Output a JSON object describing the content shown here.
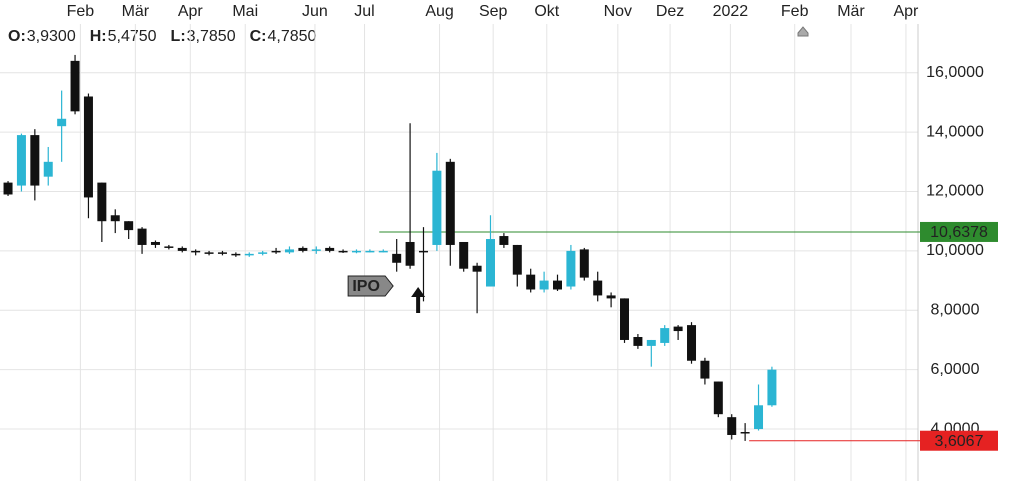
{
  "chart_data": {
    "type": "candlestick",
    "header": [
      {
        "label": "O:",
        "value": "3,9300"
      },
      {
        "label": "H:",
        "value": "5,4750"
      },
      {
        "label": "L:",
        "value": "3,7850"
      },
      {
        "label": "C:",
        "value": "4,7850"
      }
    ],
    "open": [
      12.3,
      12.2,
      13.9,
      12.5,
      14.2,
      16.4,
      15.2,
      12.3,
      11.2,
      11.0,
      10.75,
      10.3,
      10.15,
      10.1,
      10.0,
      9.95,
      9.95,
      9.9,
      9.85,
      9.9,
      10.0,
      9.95,
      10.1,
      10.0,
      10.1,
      10.0,
      9.97,
      9.98,
      9.98,
      9.9,
      10.3,
      10.0,
      10.2,
      13.0,
      10.3,
      9.5,
      8.8,
      10.5,
      10.2,
      9.2,
      8.7,
      9.0,
      8.8,
      10.05,
      9.0,
      8.5,
      8.4,
      7.1,
      6.8,
      6.9,
      7.45,
      7.5,
      6.3,
      5.6,
      4.4,
      3.9,
      4.0,
      4.8
    ],
    "high": [
      12.35,
      13.95,
      14.1,
      13.5,
      15.4,
      16.6,
      15.3,
      12.3,
      11.4,
      11.0,
      10.8,
      10.35,
      10.2,
      10.15,
      10.05,
      10.0,
      10.0,
      9.95,
      9.95,
      10.0,
      10.1,
      10.15,
      10.15,
      10.15,
      10.15,
      10.05,
      10.05,
      10.05,
      10.05,
      10.4,
      14.3,
      10.8,
      13.3,
      13.1,
      10.3,
      9.6,
      11.2,
      10.6,
      10.2,
      9.4,
      9.3,
      9.2,
      10.2,
      10.1,
      9.3,
      8.6,
      8.4,
      7.2,
      7.0,
      7.5,
      7.5,
      7.6,
      6.4,
      5.6,
      4.5,
      4.2,
      5.5,
      6.1
    ],
    "low": [
      11.85,
      12.0,
      11.7,
      12.2,
      13.0,
      14.6,
      11.1,
      10.3,
      10.6,
      10.4,
      9.9,
      10.1,
      10.05,
      9.95,
      9.85,
      9.85,
      9.85,
      9.8,
      9.8,
      9.85,
      9.9,
      9.9,
      9.95,
      9.9,
      9.95,
      9.93,
      9.92,
      9.95,
      9.95,
      9.3,
      9.4,
      8.3,
      10.0,
      9.5,
      9.3,
      7.9,
      8.8,
      10.1,
      8.8,
      8.6,
      8.6,
      8.65,
      8.7,
      9.0,
      8.3,
      8.1,
      6.9,
      6.7,
      6.1,
      6.8,
      7.0,
      6.2,
      5.5,
      4.4,
      3.65,
      3.6,
      3.95,
      4.75
    ],
    "close": [
      11.9,
      13.9,
      12.2,
      13.0,
      14.45,
      14.7,
      11.8,
      11.0,
      11.0,
      10.7,
      10.2,
      10.2,
      10.1,
      10.0,
      9.95,
      9.9,
      9.9,
      9.85,
      9.9,
      9.95,
      9.95,
      10.05,
      10.0,
      10.05,
      10.0,
      9.98,
      10.0,
      10.0,
      10.0,
      9.6,
      9.5,
      9.95,
      12.7,
      10.2,
      9.4,
      9.3,
      10.4,
      10.2,
      9.2,
      8.7,
      9.0,
      8.7,
      10.0,
      9.1,
      8.5,
      8.4,
      7.0,
      6.8,
      7.0,
      7.4,
      7.3,
      6.3,
      5.7,
      4.5,
      3.8,
      3.85,
      4.8,
      6.0
    ],
    "up_color": "#2bb5d3",
    "down_color": "#111111",
    "xlim": [
      -0.6,
      67.9
    ],
    "xticks": [
      {
        "value": 5.4,
        "label": "Feb"
      },
      {
        "value": 9.5,
        "label": "Mär"
      },
      {
        "value": 13.6,
        "label": "Apr"
      },
      {
        "value": 17.7,
        "label": "Mai"
      },
      {
        "value": 22.9,
        "label": "Jun"
      },
      {
        "value": 26.6,
        "label": "Jul"
      },
      {
        "value": 32.2,
        "label": "Aug"
      },
      {
        "value": 36.2,
        "label": "Sep"
      },
      {
        "value": 40.2,
        "label": "Okt"
      },
      {
        "value": 45.5,
        "label": "Nov"
      },
      {
        "value": 49.4,
        "label": "Dez"
      },
      {
        "value": 53.9,
        "label": "2022"
      },
      {
        "value": 58.7,
        "label": "Feb"
      },
      {
        "value": 62.9,
        "label": "Mär"
      },
      {
        "value": 67.0,
        "label": "Apr"
      }
    ],
    "ylim": [
      2.25,
      18.45
    ],
    "yticks": [
      {
        "value": 4,
        "label": "4,0000"
      },
      {
        "value": 6,
        "label": "6,0000"
      },
      {
        "value": 8,
        "label": "8,0000"
      },
      {
        "value": 10,
        "label": "10,0000"
      },
      {
        "value": 12,
        "label": "12,0000"
      },
      {
        "value": 14,
        "label": "14,0000"
      },
      {
        "value": 16,
        "label": "16,0000"
      }
    ],
    "grid": true,
    "levels": [
      {
        "value": 10.6378,
        "label": "10,6378",
        "color": "#2e8b2e",
        "from": 27.7
      },
      {
        "value": 3.6067,
        "label": "3,6067",
        "color": "#e52222",
        "from": 55.3
      }
    ],
    "annotation": {
      "text": "IPO",
      "at": 30.6
    }
  }
}
